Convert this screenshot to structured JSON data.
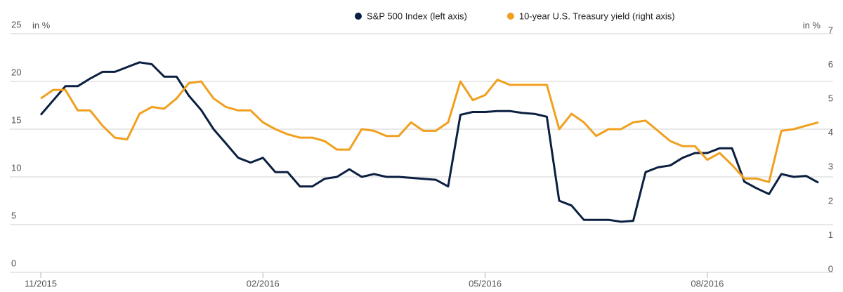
{
  "chart_data": {
    "type": "line",
    "y_unit_label": "in %",
    "y2_unit_label": "in %",
    "categories": [
      "11/2015",
      null,
      null,
      null,
      null,
      null,
      null,
      null,
      null,
      null,
      null,
      null,
      null,
      null,
      null,
      null,
      null,
      null,
      "02/2016",
      null,
      null,
      null,
      null,
      null,
      null,
      null,
      null,
      null,
      null,
      null,
      null,
      null,
      null,
      null,
      null,
      null,
      "05/2016",
      null,
      null,
      null,
      null,
      null,
      null,
      null,
      null,
      null,
      null,
      null,
      null,
      null,
      null,
      null,
      null,
      null,
      "08/2016",
      null,
      null,
      null,
      null,
      null,
      null,
      null,
      null,
      null
    ],
    "series": [
      {
        "name": "S&P 500 Index (left axis)",
        "color": "#0b1f40",
        "axis": "y",
        "values": [
          16.5,
          18,
          19.5,
          19.5,
          20.3,
          21,
          21,
          21.5,
          22,
          21.8,
          20.5,
          20.5,
          18.5,
          17,
          15,
          13.5,
          12,
          11.5,
          12,
          10.5,
          10.5,
          9,
          9,
          9.8,
          10,
          10.8,
          10,
          10.3,
          10,
          10,
          9.9,
          9.8,
          9.7,
          9,
          16.5,
          16.8,
          16.8,
          16.9,
          16.9,
          16.7,
          16.6,
          16.3,
          7.5,
          7,
          5.5,
          5.5,
          5.5,
          5.3,
          5.4,
          10.5,
          11,
          11.2,
          12,
          12.5,
          12.5,
          13,
          13,
          9.5,
          8.8,
          8.2,
          10.3,
          10,
          10.1,
          9.4
        ]
      },
      {
        "name": "10-year U.S. Treasury yield (right axis)",
        "color": "#f0a01e",
        "axis": "y2",
        "values": [
          5.1,
          5.35,
          5.35,
          4.75,
          4.75,
          4.3,
          3.95,
          3.9,
          4.65,
          4.85,
          4.8,
          5.1,
          5.55,
          5.6,
          5.1,
          4.85,
          4.75,
          4.75,
          4.4,
          4.2,
          4.05,
          3.95,
          3.95,
          3.85,
          3.6,
          3.6,
          4.2,
          4.15,
          4.0,
          4.0,
          4.4,
          4.15,
          4.15,
          4.4,
          5.6,
          5.05,
          5.2,
          5.65,
          5.5,
          5.5,
          5.5,
          5.5,
          4.2,
          4.65,
          4.4,
          4.0,
          4.2,
          4.2,
          4.4,
          4.45,
          4.15,
          3.85,
          3.7,
          3.7,
          3.3,
          3.5,
          3.15,
          2.75,
          2.75,
          2.65,
          4.15,
          4.2,
          4.3,
          4.4
        ]
      }
    ],
    "ylim": [
      0,
      25
    ],
    "yticks": [
      0,
      5,
      10,
      15,
      20,
      25
    ],
    "y2lim": [
      0,
      7
    ],
    "y2ticks": [
      0,
      1,
      2,
      3,
      4,
      5,
      6,
      7
    ],
    "grid": true,
    "legend": "top"
  }
}
